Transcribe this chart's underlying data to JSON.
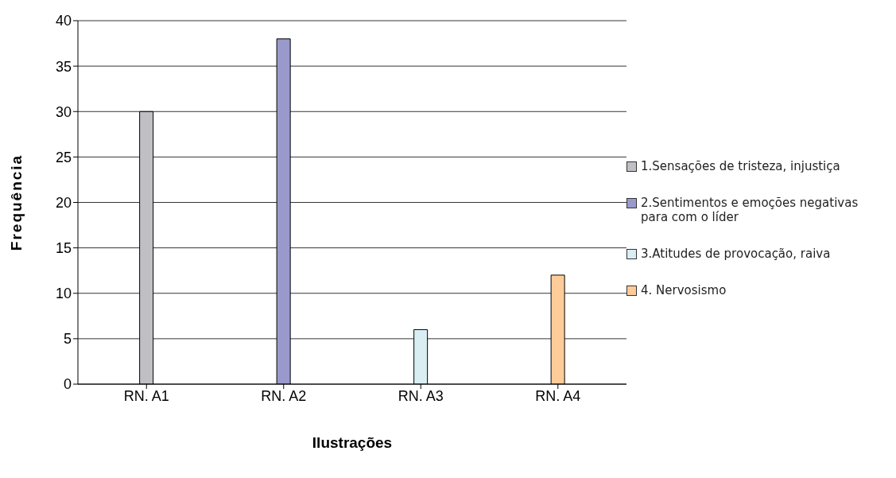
{
  "chart_data": {
    "type": "bar",
    "xlabel": "Ilustrações",
    "ylabel": "Frequência",
    "categories": [
      "RN. A1",
      "RN. A2",
      "RN. A3",
      "RN. A4"
    ],
    "stacked": true,
    "series": [
      {
        "name": "1.Sensações de tristeza, injustiça",
        "color": "#c0c0c4",
        "values": [
          30,
          null,
          null,
          null
        ]
      },
      {
        "name": "2.Sentimentos e emoções negativas para com o líder",
        "color": "#9999cc",
        "values": [
          null,
          38,
          null,
          null
        ]
      },
      {
        "name": "3.Atitudes de provocação, raiva",
        "color": "#d9eef3",
        "values": [
          null,
          null,
          6,
          null
        ]
      },
      {
        "name": "4. Nervosismo",
        "color": "#ffcc99",
        "values": [
          null,
          null,
          null,
          12
        ]
      }
    ],
    "ylim": [
      0,
      40
    ],
    "yticks": [
      0,
      5,
      10,
      15,
      20,
      25,
      30,
      35,
      40
    ],
    "grid": "y",
    "legend": "right"
  }
}
